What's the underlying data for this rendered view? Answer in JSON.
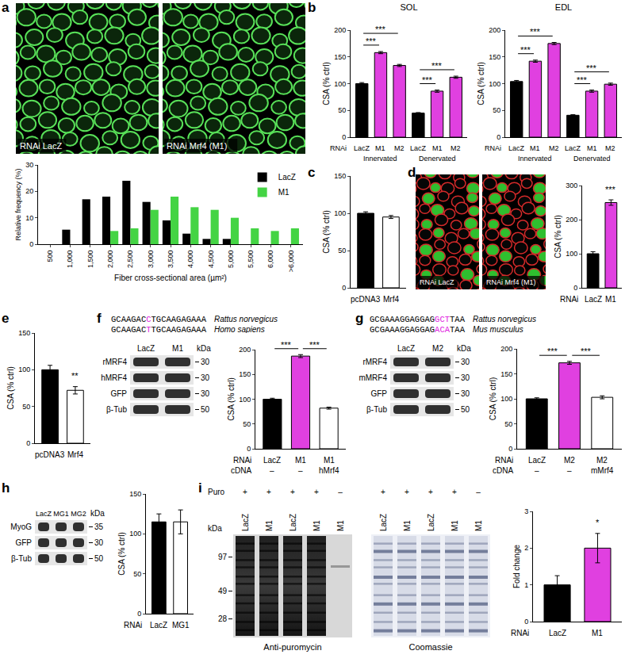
{
  "chart_data": [
    {
      "panel": "a",
      "type": "bar",
      "images": [
        "RNAi LacZ",
        "RNAi Mrf4 (M1)"
      ],
      "categories": [
        "500",
        "1,000",
        "1,500",
        "2,000",
        "2,500",
        "3,000",
        "3,500",
        "4,000",
        "4,500",
        "5,000",
        "5,500",
        "6,000",
        ">6,000"
      ],
      "series": [
        {
          "name": "LacZ",
          "color": "#000000",
          "values": [
            0,
            5.5,
            17,
            18,
            24,
            16,
            9,
            4,
            2,
            2,
            0,
            0,
            0
          ]
        },
        {
          "name": "M1",
          "color": "#44d444",
          "values": [
            0,
            0,
            0,
            5,
            6,
            13,
            18,
            14,
            13,
            10,
            6,
            5,
            6
          ]
        }
      ],
      "x_label": "Fiber cross-sectional area (µm²)",
      "y_label": "Relative frequency (%)",
      "ylim": [
        0,
        30
      ],
      "yticks": [
        0,
        10,
        20,
        30
      ],
      "legend": "top-right"
    },
    {
      "panel": "b",
      "type": "bar",
      "title": "SOL",
      "category_label": "RNAi",
      "categories": [
        "LacZ",
        "M1",
        "M2",
        "LacZ",
        "M1",
        "M2"
      ],
      "groups": [
        "Innervated",
        "Denervated"
      ],
      "values": [
        100,
        158,
        134,
        45,
        86,
        112
      ],
      "errors": [
        2,
        2,
        2,
        1,
        2,
        2
      ],
      "colors": [
        "#000000",
        "#e040e0",
        "#e040e0",
        "#000000",
        "#e040e0",
        "#e040e0"
      ],
      "y_label": "CSA (% ctrl)",
      "ylim": [
        0,
        200
      ],
      "yticks": [
        0,
        50,
        100,
        150,
        200
      ],
      "significance": [
        {
          "from": 0,
          "to": 1,
          "text": "***"
        },
        {
          "from": 0,
          "to": 2,
          "text": "***"
        },
        {
          "from": 3,
          "to": 4,
          "text": "***"
        },
        {
          "from": 3,
          "to": 5,
          "text": "***"
        }
      ]
    },
    {
      "type": "bar",
      "title": "EDL",
      "category_label": "RNAi",
      "categories": [
        "LacZ",
        "M1",
        "M2",
        "LacZ",
        "M1",
        "M2"
      ],
      "groups": [
        "Innervated",
        "Denervated"
      ],
      "values": [
        104,
        142,
        175,
        41,
        86,
        99
      ],
      "errors": [
        2,
        2,
        2,
        1,
        2,
        2
      ],
      "colors": [
        "#000000",
        "#e040e0",
        "#e040e0",
        "#000000",
        "#e040e0",
        "#e040e0"
      ],
      "y_label": "CSA (% ctrl)",
      "ylim": [
        0,
        200
      ],
      "yticks": [
        0,
        50,
        100,
        150,
        200
      ],
      "significance": [
        {
          "from": 0,
          "to": 1,
          "text": "***"
        },
        {
          "from": 0,
          "to": 2,
          "text": "***"
        },
        {
          "from": 3,
          "to": 4,
          "text": "***"
        },
        {
          "from": 3,
          "to": 5,
          "text": "***"
        }
      ]
    },
    {
      "panel": "c",
      "type": "bar",
      "categories": [
        "pcDNA3",
        "Mrf4"
      ],
      "values": [
        100,
        95
      ],
      "errors": [
        2,
        2
      ],
      "colors": [
        "#000000",
        "#ffffff"
      ],
      "y_label": "CSA (% ctrl)",
      "ylim": [
        0,
        150
      ],
      "yticks": [
        0,
        50,
        100,
        150
      ]
    },
    {
      "panel": "d",
      "type": "bar",
      "images": [
        "RNAi LacZ",
        "RNAi Mrf4 (M1)"
      ],
      "category_label": "RNAi",
      "categories": [
        "LacZ",
        "M1"
      ],
      "values": [
        100,
        250
      ],
      "errors": [
        6,
        8
      ],
      "colors": [
        "#000000",
        "#e040e0"
      ],
      "y_label": "CSA (% ctrl)",
      "ylim": [
        0,
        300
      ],
      "yticks": [
        0,
        100,
        200,
        300
      ],
      "significance": [
        {
          "from": 1,
          "to": 1,
          "text": "***"
        }
      ]
    },
    {
      "panel": "e",
      "type": "bar",
      "categories": [
        "pcDNA3",
        "Mrf4"
      ],
      "values": [
        100,
        72
      ],
      "errors": [
        6,
        5
      ],
      "colors": [
        "#000000",
        "#ffffff"
      ],
      "y_label": "CSA (% ctrl)",
      "ylim": [
        0,
        150
      ],
      "yticks": [
        0,
        50,
        100,
        150
      ],
      "significance": [
        {
          "from": 1,
          "to": 1,
          "text": "**"
        }
      ]
    },
    {
      "panel": "f",
      "type": "bar",
      "sequences": [
        {
          "text": "GCAAGACCTGCAAGAGAAA",
          "species": "Rattus norvegicus"
        },
        {
          "text": "GCAAGACTTGCAAGAGAAA",
          "species": "Homo sapiens"
        }
      ],
      "highlight": [
        7
      ],
      "blot": {
        "lanes": [
          "LacZ",
          "M1"
        ],
        "unit": "kDa",
        "rows": [
          {
            "label": "rMRF4",
            "kDa": 30
          },
          {
            "label": "hMRF4",
            "kDa": 30
          },
          {
            "label": "GFP",
            "kDa": 30
          },
          {
            "label": "β-Tub",
            "kDa": 50
          }
        ]
      },
      "category_label": "RNAi",
      "categories": [
        "LacZ",
        "M1",
        "M1"
      ],
      "extra_rows": [
        {
          "label": "cDNA",
          "values": [
            "–",
            "–",
            "hMrf4"
          ]
        }
      ],
      "values": [
        100,
        187,
        82
      ],
      "errors": [
        2,
        3,
        2
      ],
      "colors": [
        "#000000",
        "#e040e0",
        "#ffffff"
      ],
      "y_label": "CSA (% ctrl)",
      "ylim": [
        0,
        200
      ],
      "yticks": [
        0,
        50,
        100,
        150,
        200
      ],
      "significance": [
        {
          "from": 0,
          "to": 1,
          "text": "***"
        },
        {
          "from": 1,
          "to": 2,
          "text": "***"
        }
      ]
    },
    {
      "panel": "g",
      "type": "bar",
      "sequences": [
        {
          "text": "GCGAAAGGAGGAGGCTTAA",
          "species": "Rattus norvegicus"
        },
        {
          "text": "GCGAAAGGAGGAGACATAA",
          "species": "Mus musculus"
        }
      ],
      "highlight": [
        13,
        14,
        15
      ],
      "blot": {
        "lanes": [
          "LacZ",
          "M2"
        ],
        "unit": "kDa",
        "rows": [
          {
            "label": "rMRF4",
            "kDa": 30
          },
          {
            "label": "mMRF4",
            "kDa": 30
          },
          {
            "label": "GFP",
            "kDa": 30
          },
          {
            "label": "β-Tub",
            "kDa": 50
          }
        ]
      },
      "category_label": "RNAi",
      "categories": [
        "LacZ",
        "M2",
        "M2"
      ],
      "extra_rows": [
        {
          "label": "cDNA",
          "values": [
            "–",
            "–",
            "mMrf4"
          ]
        }
      ],
      "values": [
        100,
        172,
        103
      ],
      "errors": [
        2,
        3,
        3
      ],
      "colors": [
        "#000000",
        "#e040e0",
        "#ffffff"
      ],
      "y_label": "CSA (% ctrl)",
      "ylim": [
        0,
        200
      ],
      "yticks": [
        0,
        50,
        100,
        150,
        200
      ],
      "significance": [
        {
          "from": 0,
          "to": 1,
          "text": "***"
        },
        {
          "from": 1,
          "to": 2,
          "text": "***"
        }
      ]
    },
    {
      "panel": "h",
      "type": "bar",
      "blot": {
        "lanes": [
          "LacZ",
          "MG1",
          "MG2"
        ],
        "unit": "kDa",
        "rows": [
          {
            "label": "MyoG",
            "kDa": 35
          },
          {
            "label": "GFP",
            "kDa": 30
          },
          {
            "label": "β-Tub",
            "kDa": 50
          }
        ]
      },
      "category_label": "RNAi",
      "categories": [
        "LacZ",
        "MG1"
      ],
      "values": [
        115,
        115
      ],
      "errors": [
        10,
        15
      ],
      "colors": [
        "#000000",
        "#ffffff"
      ],
      "y_label": "CSA (% ctrl)",
      "ylim": [
        0,
        150
      ],
      "yticks": [
        0,
        50,
        100,
        150
      ]
    },
    {
      "panel": "i",
      "type": "bar",
      "puro_blot": {
        "puro_label": "Puro",
        "puro": [
          "+",
          "+",
          "+",
          "+",
          "–"
        ],
        "lanes": [
          "LacZ",
          "M1",
          "LacZ",
          "M1",
          "M1"
        ],
        "unit": "kDa",
        "markers": [
          97,
          49,
          28
        ],
        "blots": [
          "Anti-puromycin",
          "Coomassie"
        ]
      },
      "category_label": "RNAi",
      "categories": [
        "LacZ",
        "M1"
      ],
      "values": [
        1,
        2
      ],
      "errors": [
        0.25,
        0.4
      ],
      "colors": [
        "#000000",
        "#e040e0"
      ],
      "y_label": "Fold change",
      "ylim": [
        0,
        3
      ],
      "yticks": [
        0,
        1,
        2,
        3
      ],
      "significance": [
        {
          "from": 1,
          "to": 1,
          "text": "*"
        }
      ]
    }
  ]
}
